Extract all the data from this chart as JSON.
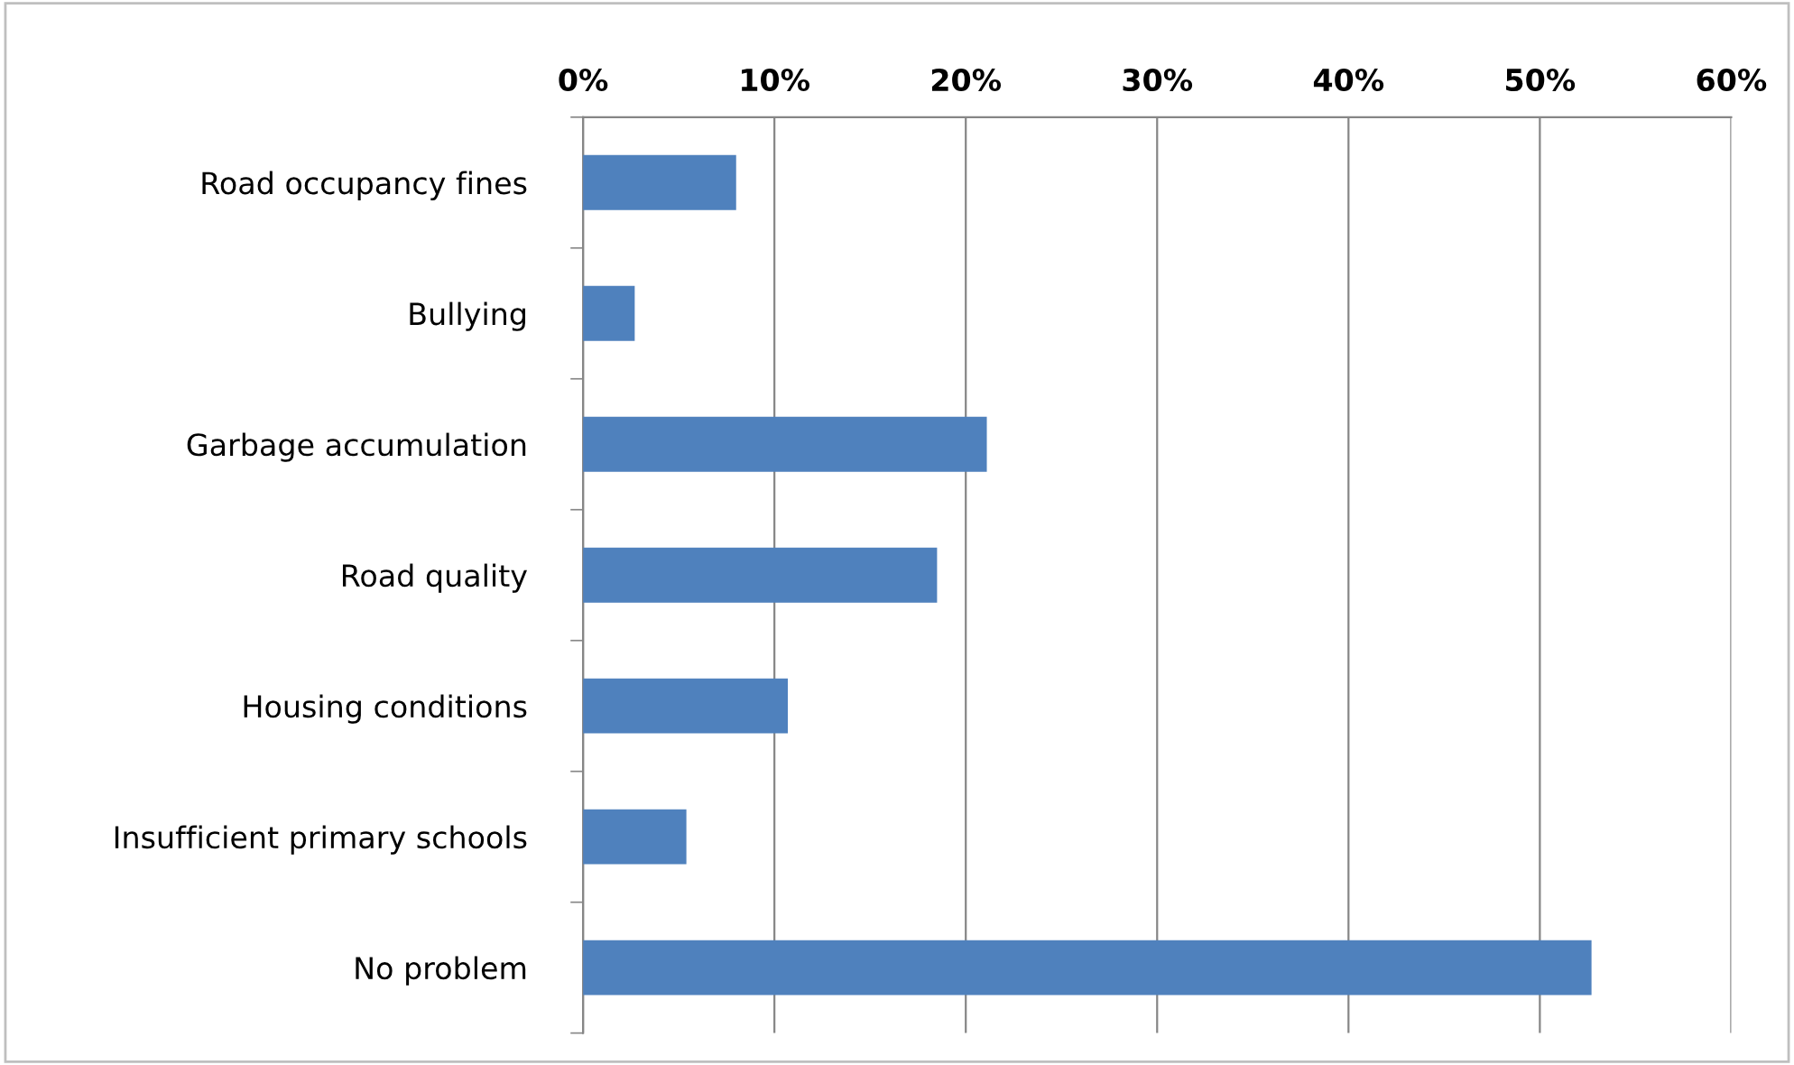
{
  "chart_data": {
    "type": "bar",
    "orientation": "horizontal",
    "categories": [
      "Road occupancy fines",
      "Bullying",
      "Garbage accumulation",
      "Road quality",
      "Housing conditions",
      "Insufficient primary schools",
      "No problem"
    ],
    "values": [
      8.0,
      2.7,
      21.1,
      18.5,
      10.7,
      5.4,
      52.7
    ],
    "color": "#4f81bd",
    "xlim": [
      0,
      60
    ],
    "xticks": [
      {
        "value": 0,
        "label": "0%"
      },
      {
        "value": 10,
        "label": "10%"
      },
      {
        "value": 20,
        "label": "20%"
      },
      {
        "value": 30,
        "label": "30%"
      },
      {
        "value": 40,
        "label": "40%"
      },
      {
        "value": 50,
        "label": "50%"
      },
      {
        "value": 60,
        "label": "60%"
      }
    ],
    "grid": "x",
    "legend": false
  }
}
